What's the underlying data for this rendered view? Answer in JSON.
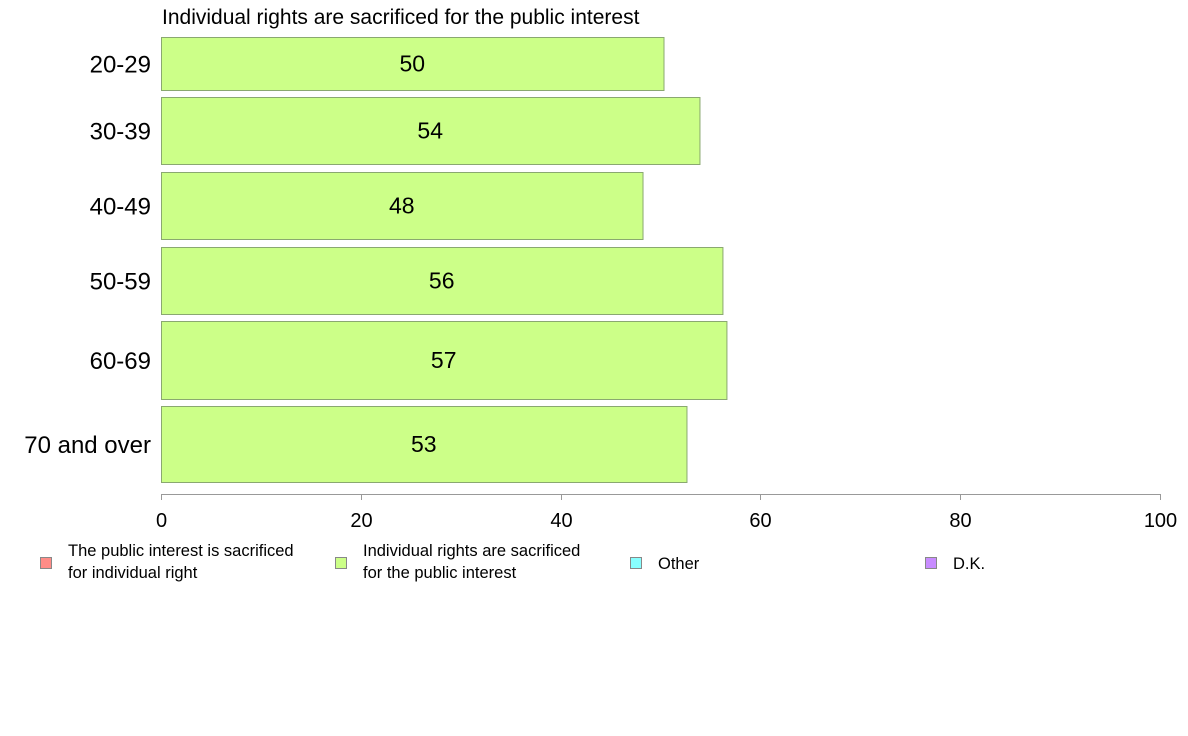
{
  "chart_data": {
    "type": "bar",
    "orientation": "horizontal",
    "title": "Individual rights are sacrificed for the public interest",
    "categories": [
      "20-29",
      "30-39",
      "40-49",
      "50-59",
      "60-69",
      "70 and over"
    ],
    "values": [
      50.3,
      53.9,
      48.2,
      56.2,
      56.6,
      52.6
    ],
    "value_labels": [
      "50",
      "54",
      "48",
      "56",
      "57",
      "53"
    ],
    "xlim": [
      0,
      100
    ],
    "xticks": [
      "0",
      "20",
      "40",
      "60",
      "80",
      "100"
    ],
    "bar_color": "#ccff88",
    "bar_stroke": "#8aa870",
    "grid": false
  },
  "legend": {
    "placement": "bottom",
    "items": [
      {
        "lines": [
          "The public interest is sacrificed",
          "for individual right"
        ],
        "color": "#ff8c87"
      },
      {
        "lines": [
          "Individual rights are sacrificed",
          "for the public interest"
        ],
        "color": "#ccff88"
      },
      {
        "lines": [
          "Other"
        ],
        "color": "#88ffff"
      },
      {
        "lines": [
          "D.K."
        ],
        "color": "#c88cff"
      }
    ]
  }
}
